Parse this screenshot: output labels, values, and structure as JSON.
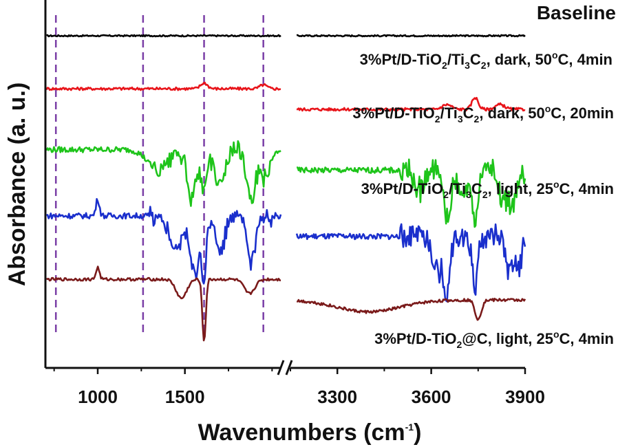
{
  "chart_data": {
    "type": "line",
    "title": "Baseline",
    "xlabel": {
      "main": "Wavenumbers (cm",
      "sup": "-1",
      "end": ")"
    },
    "ylabel": "Absorbance (a. u.)",
    "x_axis_segments": [
      {
        "range": [
          700,
          2050
        ],
        "ticks": [
          1000,
          1500
        ]
      },
      {
        "range": [
          3150,
          3900
        ],
        "ticks": [
          3300,
          3600,
          3900
        ]
      }
    ],
    "tick_labels": [
      "1000",
      "1500",
      "3300",
      "3600",
      "3900"
    ],
    "reference_lines": [
      760,
      1260,
      1610,
      1950
    ],
    "reference_color": "#7a3ea6",
    "series": [
      {
        "name": "Baseline",
        "color": "#000000",
        "label_parts": [
          "Baseline"
        ],
        "offset": 0.0,
        "noise": 0.03,
        "features": [],
        "features_high": []
      },
      {
        "name": "3%Pt/D-TiO2/Ti3C2, dark, 50°C, 4min",
        "color": "#e8141a",
        "label_parts": [
          "3%Pt/D-TiO",
          "2",
          "/Ti",
          "3",
          "C",
          "2",
          ", dark, 50",
          "o",
          "C, 4min"
        ],
        "offset": 1.0,
        "noise": 0.06,
        "features": [
          [
            1610,
            0.12,
            20
          ],
          [
            1950,
            0.08,
            20
          ]
        ],
        "features_high": [
          [
            3650,
            0.1,
            15
          ],
          [
            3740,
            0.25,
            10
          ],
          [
            3820,
            0.1,
            15
          ]
        ]
      },
      {
        "name": "3%Pt/D-TiO2/Ti3C2, dark, 50°C, 20min",
        "color": "#1ec41a",
        "label_parts": [
          "3%Pt/D-TiO",
          "2",
          "/Ti",
          "3",
          "C",
          "2",
          ", dark, 50",
          "o",
          "C, 20min"
        ],
        "offset": 2.15,
        "noise": 0.12,
        "features": [
          [
            1350,
            -0.45,
            60
          ],
          [
            1540,
            -1.1,
            25
          ],
          [
            1610,
            -0.9,
            15
          ],
          [
            1700,
            -0.7,
            30
          ],
          [
            1880,
            -0.95,
            25
          ],
          [
            1960,
            -0.6,
            30
          ]
        ],
        "features_high": [
          [
            3560,
            -0.4,
            15
          ],
          [
            3650,
            -1.0,
            12
          ],
          [
            3700,
            -0.5,
            15
          ],
          [
            3740,
            -1.2,
            8
          ],
          [
            3830,
            -0.7,
            12
          ],
          [
            3860,
            -0.8,
            10
          ]
        ]
      },
      {
        "name": "3%Pt/D-TiO2/Ti3C2, light, 25°C, 4min",
        "color": "#1a2fcc",
        "label_parts": [
          "3%Pt/D-TiO",
          "2",
          "/Ti",
          "3",
          "C",
          "2",
          ", light, 25",
          "o",
          "C, 4min"
        ],
        "offset": 3.4,
        "noise": 0.12,
        "features": [
          [
            1000,
            0.35,
            10
          ],
          [
            1450,
            -0.7,
            40
          ],
          [
            1560,
            -1.2,
            25
          ],
          [
            1610,
            -1.4,
            12
          ],
          [
            1700,
            -0.8,
            25
          ],
          [
            1880,
            -1.0,
            25
          ]
        ],
        "features_high": [
          [
            3620,
            -0.7,
            15
          ],
          [
            3650,
            -1.1,
            10
          ],
          [
            3740,
            -1.1,
            8
          ],
          [
            3850,
            -0.8,
            10
          ],
          [
            3880,
            -0.7,
            10
          ]
        ]
      },
      {
        "name": "3%Pt/D-TiO2@C, light, 25°C, 4min",
        "color": "#7a1a1a",
        "label_parts": [
          "3%Pt/D-TiO",
          "2",
          "@C, light, 25",
          "o",
          "C, 4min"
        ],
        "offset": 4.6,
        "noise": 0.06,
        "features": [
          [
            1000,
            0.25,
            10
          ],
          [
            1480,
            -0.4,
            30
          ],
          [
            1610,
            -1.3,
            10
          ],
          [
            1870,
            -0.3,
            30
          ]
        ],
        "features_high": [
          [
            3400,
            -0.25,
            100
          ],
          [
            3750,
            -0.4,
            10
          ]
        ]
      }
    ]
  }
}
